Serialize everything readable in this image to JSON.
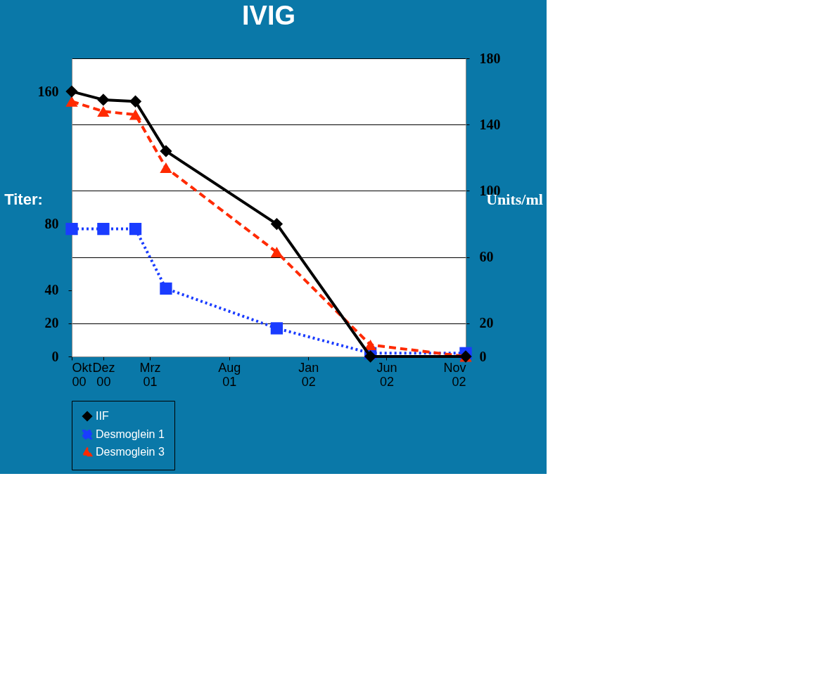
{
  "chart_data": {
    "type": "line",
    "title": "IVIG",
    "ylabel": "Titer:",
    "y2label": "Units/ml",
    "x": [
      "2000-10",
      "2000-12",
      "2001-02",
      "2001-04",
      "2001-11",
      "2002-05",
      "2002-11"
    ],
    "xlim": [
      "2000-10",
      "2002-11"
    ],
    "xticks": [
      {
        "value": "2000-10",
        "label": "Okt 00"
      },
      {
        "value": "2000-12",
        "label": "Dez 00"
      },
      {
        "value": "2001-03",
        "label": "Mrz 01"
      },
      {
        "value": "2001-08",
        "label": "Aug 01"
      },
      {
        "value": "2002-01",
        "label": "Jan 02"
      },
      {
        "value": "2002-06",
        "label": "Jun 02"
      },
      {
        "value": "2002-11",
        "label": "Nov 02"
      }
    ],
    "ylim": [
      0,
      180
    ],
    "yticks": [
      0,
      20,
      40,
      80,
      160
    ],
    "y2lim": [
      0,
      180
    ],
    "y2ticks": [
      0,
      20,
      60,
      100,
      140,
      180
    ],
    "grid": true,
    "legend": "bottom",
    "series": [
      {
        "name": "IIF",
        "color": "#000000",
        "marker": "diamond",
        "line_style": "solid",
        "values": [
          160,
          155,
          154,
          124,
          80,
          0,
          0
        ]
      },
      {
        "name": "Desmoglein 1",
        "color": "#1a3cff",
        "marker": "square",
        "line_style": "dotted",
        "axis": "y2",
        "values": [
          77,
          77,
          77,
          41,
          17,
          2,
          2
        ]
      },
      {
        "name": "Desmoglein 3",
        "color": "#ff2a00",
        "marker": "triangle",
        "line_style": "dashed",
        "axis": "y2",
        "values": [
          154,
          148,
          146,
          114,
          63,
          7,
          0
        ]
      }
    ]
  }
}
